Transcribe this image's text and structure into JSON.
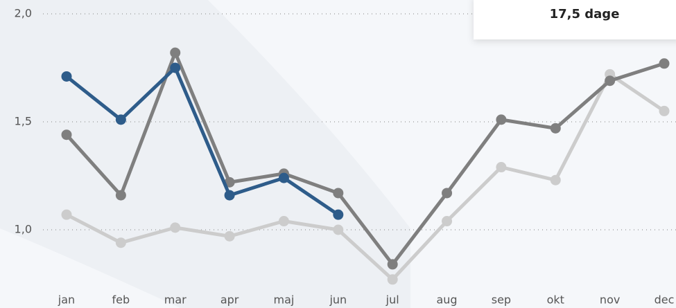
{
  "chart_data": {
    "type": "line",
    "categories": [
      "jan",
      "feb",
      "mar",
      "apr",
      "maj",
      "jun",
      "jul",
      "aug",
      "sep",
      "okt",
      "nov",
      "dec"
    ],
    "series": [
      {
        "color": "#cccccc",
        "values": [
          1.07,
          0.94,
          1.01,
          0.97,
          1.04,
          1.0,
          0.77,
          1.04,
          1.29,
          1.23,
          1.72,
          1.55
        ]
      },
      {
        "color": "#7f7f7f",
        "values": [
          1.44,
          1.16,
          1.82,
          1.22,
          1.26,
          1.17,
          0.84,
          1.17,
          1.51,
          1.47,
          1.69,
          1.77
        ]
      },
      {
        "color": "#2e5c8a",
        "values": [
          1.71,
          1.51,
          1.75,
          1.16,
          1.24,
          1.07,
          null,
          null,
          null,
          null,
          null,
          null
        ]
      }
    ],
    "ylim": [
      0.7,
      2.0
    ],
    "yticks": [
      {
        "value": 1.0,
        "label": "1,0"
      },
      {
        "value": 1.5,
        "label": "1,5"
      },
      {
        "value": 2.0,
        "label": "2,0"
      }
    ],
    "grid": true,
    "annotation": "17,5 dage"
  }
}
